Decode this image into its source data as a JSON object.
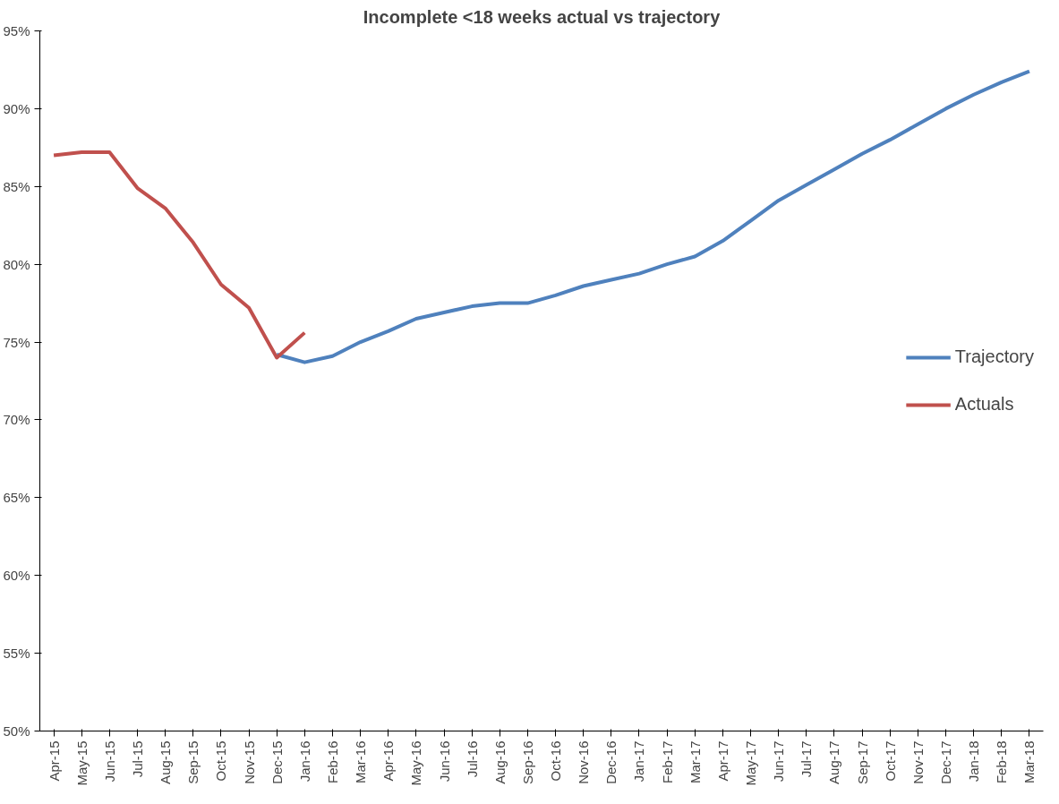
{
  "chart_data": {
    "type": "line",
    "title": "Incomplete <18 weeks actual vs trajectory",
    "categories": [
      "Apr-15",
      "May-15",
      "Jun-15",
      "Jul-15",
      "Aug-15",
      "Sep-15",
      "Oct-15",
      "Nov-15",
      "Dec-15",
      "Jan-16",
      "Feb-16",
      "Mar-16",
      "Apr-16",
      "May-16",
      "Jun-16",
      "Jul-16",
      "Aug-16",
      "Sep-16",
      "Oct-16",
      "Nov-16",
      "Dec-16",
      "Jan-17",
      "Feb-17",
      "Mar-17",
      "Apr-17",
      "May-17",
      "Jun-17",
      "Jul-17",
      "Aug-17",
      "Sep-17",
      "Oct-17",
      "Nov-17",
      "Dec-17",
      "Jan-18",
      "Feb-18",
      "Mar-18"
    ],
    "series": [
      {
        "name": "Trajectory",
        "color": "#4f81bd",
        "values": [
          null,
          null,
          null,
          null,
          null,
          null,
          null,
          null,
          74.2,
          73.7,
          74.1,
          75.0,
          75.7,
          76.5,
          76.9,
          77.3,
          77.5,
          77.5,
          78.0,
          78.6,
          79.0,
          79.4,
          80.0,
          80.5,
          81.5,
          82.8,
          84.1,
          85.1,
          86.1,
          87.1,
          88.0,
          89.0,
          90.0,
          90.9,
          91.7,
          92.4
        ]
      },
      {
        "name": "Actuals",
        "color": "#c0504d",
        "values": [
          87.0,
          87.2,
          87.2,
          84.9,
          83.6,
          81.4,
          78.7,
          77.2,
          74.0,
          75.6,
          null,
          null,
          null,
          null,
          null,
          null,
          null,
          null,
          null,
          null,
          null,
          null,
          null,
          null,
          null,
          null,
          null,
          null,
          null,
          null,
          null,
          null,
          null,
          null,
          null,
          null
        ]
      }
    ],
    "ylim": [
      50,
      95
    ],
    "yticks": [
      {
        "value": 50,
        "label": "50%"
      },
      {
        "value": 55,
        "label": "55%"
      },
      {
        "value": 60,
        "label": "60%"
      },
      {
        "value": 65,
        "label": "65%"
      },
      {
        "value": 70,
        "label": "70%"
      },
      {
        "value": 75,
        "label": "75%"
      },
      {
        "value": 80,
        "label": "80%"
      },
      {
        "value": 85,
        "label": "85%"
      },
      {
        "value": 90,
        "label": "90%"
      },
      {
        "value": 95,
        "label": "95%"
      }
    ],
    "grid": false,
    "legend": "right",
    "line_style": "solid"
  }
}
